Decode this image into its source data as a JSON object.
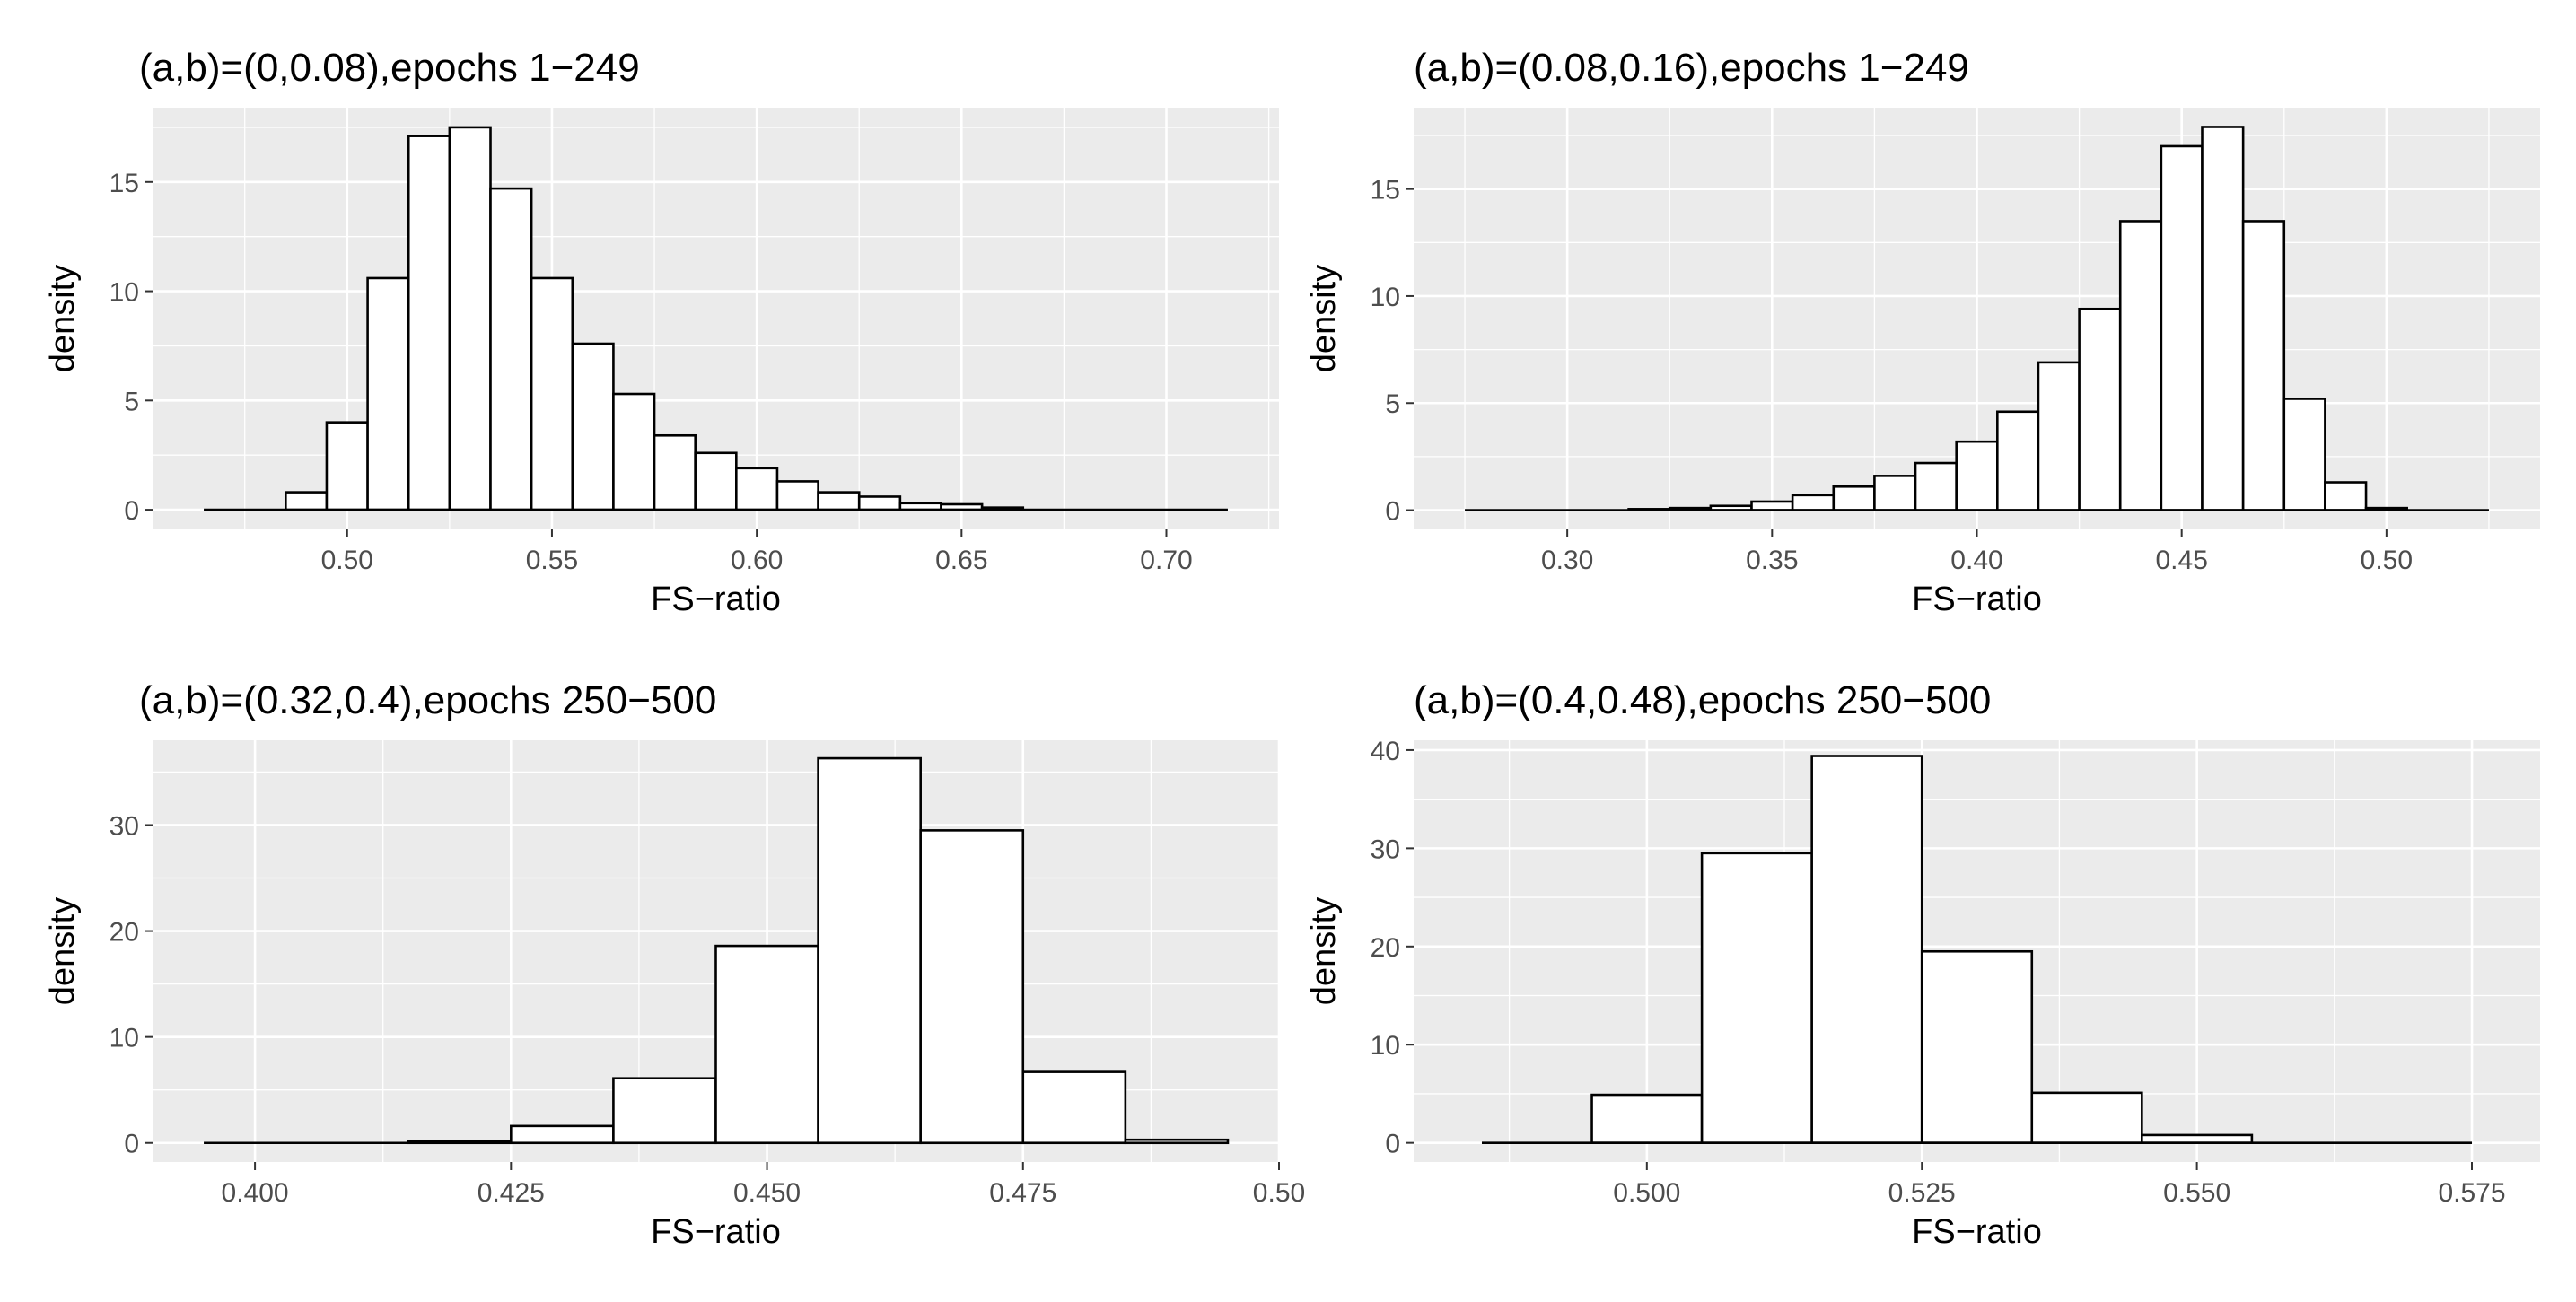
{
  "chart_data": [
    {
      "type": "histogram",
      "title": "(a,b)=(0,0.08),epochs 1−249",
      "xlabel": "FS−ratio",
      "ylabel": "density",
      "xlim": [
        0.4525,
        0.7275
      ],
      "ylim": [
        -0.9,
        18.4
      ],
      "x_ticks": [
        0.5,
        0.55,
        0.6,
        0.65,
        0.7
      ],
      "x_tick_labels": [
        "0.50",
        "0.55",
        "0.60",
        "0.65",
        "0.70"
      ],
      "y_ticks": [
        0,
        5,
        10,
        15
      ],
      "y_tick_labels": [
        "0",
        "5",
        "10",
        "15"
      ],
      "bins": [
        0.465,
        0.475,
        0.485,
        0.495,
        0.505,
        0.515,
        0.525,
        0.535,
        0.545,
        0.555,
        0.565,
        0.575,
        0.585,
        0.595,
        0.605,
        0.615,
        0.625,
        0.635,
        0.645,
        0.655,
        0.665,
        0.675,
        0.685,
        0.695,
        0.705,
        0.715
      ],
      "values": [
        0,
        0,
        0.8,
        4.0,
        10.6,
        17.1,
        17.5,
        14.7,
        10.6,
        7.6,
        5.3,
        3.4,
        2.6,
        1.9,
        1.3,
        0.8,
        0.6,
        0.3,
        0.25,
        0.1,
        0,
        0,
        0,
        0,
        0
      ]
    },
    {
      "type": "histogram",
      "title": "(a,b)=(0.08,0.16),epochs 1−249",
      "xlabel": "FS−ratio",
      "ylabel": "density",
      "xlim": [
        0.2625,
        0.5375
      ],
      "ylim": [
        -0.9,
        18.8
      ],
      "x_ticks": [
        0.3,
        0.35,
        0.4,
        0.45,
        0.5
      ],
      "x_tick_labels": [
        "0.30",
        "0.35",
        "0.40",
        "0.45",
        "0.50"
      ],
      "y_ticks": [
        0,
        5,
        10,
        15
      ],
      "y_tick_labels": [
        "0",
        "5",
        "10",
        "15"
      ],
      "bins": [
        0.275,
        0.285,
        0.295,
        0.305,
        0.315,
        0.325,
        0.335,
        0.345,
        0.355,
        0.365,
        0.375,
        0.385,
        0.395,
        0.405,
        0.415,
        0.425,
        0.435,
        0.445,
        0.455,
        0.465,
        0.475,
        0.485,
        0.495,
        0.505,
        0.515,
        0.525
      ],
      "values": [
        0,
        0,
        0,
        0,
        0.05,
        0.1,
        0.2,
        0.4,
        0.7,
        1.1,
        1.6,
        2.2,
        3.2,
        4.6,
        6.9,
        9.4,
        13.5,
        17.0,
        17.9,
        13.5,
        5.2,
        1.3,
        0.1,
        0,
        0
      ]
    },
    {
      "type": "histogram",
      "title": "(a,b)=(0.32,0.4),epochs 250−500",
      "xlabel": "FS−ratio",
      "ylabel": "density",
      "xlim": [
        0.39,
        0.5
      ],
      "ylim": [
        -1.8,
        38.0
      ],
      "x_ticks": [
        0.4,
        0.425,
        0.45,
        0.475,
        0.5
      ],
      "x_tick_labels": [
        "0.400",
        "0.425",
        "0.450",
        "0.475",
        "0.50"
      ],
      "y_ticks": [
        0,
        10,
        20,
        30
      ],
      "y_tick_labels": [
        "0",
        "10",
        "20",
        "30"
      ],
      "bins": [
        0.395,
        0.405,
        0.415,
        0.425,
        0.435,
        0.445,
        0.455,
        0.465,
        0.475,
        0.485,
        0.495
      ],
      "values": [
        0,
        0,
        0.2,
        1.6,
        6.1,
        18.6,
        36.3,
        29.5,
        6.7,
        0.3
      ]
    },
    {
      "type": "histogram",
      "title": "(a,b)=(0.4,0.48),epochs 250−500",
      "xlabel": "FS−ratio",
      "ylabel": "density",
      "xlim": [
        0.4788,
        0.5812
      ],
      "ylim": [
        -1.95,
        41.0
      ],
      "x_ticks": [
        0.5,
        0.525,
        0.55,
        0.575
      ],
      "x_tick_labels": [
        "0.500",
        "0.525",
        "0.550",
        "0.575"
      ],
      "y_ticks": [
        0,
        10,
        20,
        30,
        40
      ],
      "y_tick_labels": [
        "0",
        "10",
        "20",
        "30",
        "40"
      ],
      "bins": [
        0.485,
        0.495,
        0.505,
        0.515,
        0.525,
        0.535,
        0.545,
        0.555,
        0.565,
        0.575
      ],
      "values": [
        0,
        4.9,
        29.5,
        39.4,
        19.5,
        5.1,
        0.8,
        0,
        0
      ]
    }
  ]
}
